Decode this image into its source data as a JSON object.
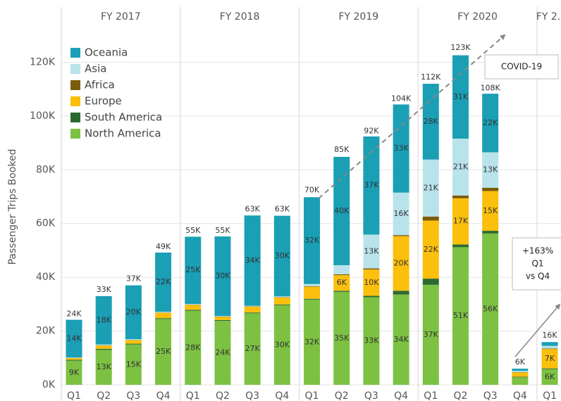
{
  "chart_data": {
    "type": "stacked_bar",
    "y_label": "Passenger Trips Booked",
    "categories": [
      "Q1",
      "Q2",
      "Q3",
      "Q4",
      "Q1",
      "Q2",
      "Q3",
      "Q4",
      "Q1",
      "Q2",
      "Q3",
      "Q4",
      "Q1",
      "Q2",
      "Q3",
      "Q4",
      "Q1"
    ],
    "groups": [
      {
        "label": "FY 2017",
        "span": 4
      },
      {
        "label": "FY 2018",
        "span": 4
      },
      {
        "label": "FY 2019",
        "span": 4
      },
      {
        "label": "FY 2020",
        "span": 4
      },
      {
        "label": "FY 2.",
        "span": 1
      }
    ],
    "series": [
      {
        "name": "North America",
        "color": "#7dc143",
        "values": [
          9000,
          13000,
          15000,
          24500,
          27600,
          23800,
          26600,
          29600,
          31700,
          34600,
          32600,
          33600,
          37200,
          51200,
          56300,
          2800,
          5800
        ],
        "value_labels": [
          "9K",
          "13K",
          "15K",
          "25K",
          "28K",
          "24K",
          "27K",
          "30K",
          "32K",
          "35K",
          "33K",
          "34K",
          "37K",
          "51K",
          "56K",
          null,
          "6K"
        ]
      },
      {
        "name": "South America",
        "color": "#2b6a2f",
        "values": [
          300,
          400,
          300,
          300,
          300,
          300,
          300,
          300,
          300,
          400,
          500,
          1400,
          2300,
          1000,
          1000,
          200,
          300
        ],
        "value_labels": [
          null,
          null,
          null,
          null,
          null,
          null,
          null,
          null,
          null,
          null,
          null,
          null,
          null,
          null,
          null,
          null,
          null
        ]
      },
      {
        "name": "Europe",
        "color": "#fbbf0c",
        "values": [
          600,
          1200,
          1300,
          2000,
          1800,
          1200,
          2200,
          2600,
          4500,
          5800,
          9800,
          20300,
          21600,
          17200,
          14800,
          1600,
          7200
        ],
        "value_labels": [
          null,
          null,
          null,
          null,
          null,
          null,
          null,
          null,
          null,
          "6K",
          "10K",
          "20K",
          "22K",
          "17K",
          "15K",
          null,
          "7K"
        ]
      },
      {
        "name": "Africa",
        "color": "#7a5c0a",
        "values": [
          100,
          100,
          100,
          100,
          100,
          100,
          100,
          100,
          200,
          300,
          400,
          400,
          1500,
          1000,
          1200,
          100,
          200
        ],
        "value_labels": [
          null,
          null,
          null,
          null,
          null,
          null,
          null,
          null,
          null,
          null,
          null,
          null,
          null,
          null,
          null,
          null,
          null
        ]
      },
      {
        "name": "Asia",
        "color": "#b9e3ea",
        "values": [
          200,
          300,
          300,
          300,
          300,
          200,
          200,
          300,
          800,
          3400,
          12600,
          15800,
          21200,
          21200,
          13200,
          500,
          1000
        ],
        "value_labels": [
          null,
          null,
          null,
          null,
          null,
          null,
          null,
          null,
          null,
          null,
          "13K",
          "16K",
          "21K",
          "21K",
          "13K",
          null,
          null
        ]
      },
      {
        "name": "Oceania",
        "color": "#1a9fb5",
        "values": [
          14000,
          18000,
          20000,
          22000,
          25000,
          29600,
          33600,
          30000,
          32300,
          40300,
          36500,
          32800,
          28200,
          31000,
          21800,
          800,
          1400
        ],
        "value_labels": [
          "14K",
          "18K",
          "20K",
          "22K",
          "25K",
          "30K",
          "34K",
          "30K",
          "32K",
          "40K",
          "37K",
          "33K",
          "28K",
          "31K",
          "22K",
          null,
          null
        ]
      }
    ],
    "totals": [
      24000,
      33000,
      37000,
      49000,
      55000,
      55000,
      63000,
      63000,
      70000,
      85000,
      92000,
      104000,
      112000,
      123000,
      108000,
      6000,
      16000
    ],
    "total_labels": [
      "24K",
      "33K",
      "37K",
      "49K",
      "55K",
      "55K",
      "63K",
      "63K",
      "70K",
      "85K",
      "92K",
      "104K",
      "112K",
      "123K",
      "108K",
      "6K",
      "16K"
    ],
    "ylim": [
      0,
      134000
    ],
    "yticks": [
      {
        "value": 0,
        "label": "0K"
      },
      {
        "value": 20000,
        "label": "20K"
      },
      {
        "value": 40000,
        "label": "40K"
      },
      {
        "value": 60000,
        "label": "60K"
      },
      {
        "value": 80000,
        "label": "80K"
      },
      {
        "value": 100000,
        "label": "100K"
      },
      {
        "value": 120000,
        "label": "120K"
      }
    ],
    "grid": true,
    "legend": "top-left",
    "annotations": [
      {
        "lines": [
          "COVID-19"
        ]
      },
      {
        "lines": [
          "+163%",
          "Q1",
          "vs Q4"
        ]
      }
    ]
  }
}
